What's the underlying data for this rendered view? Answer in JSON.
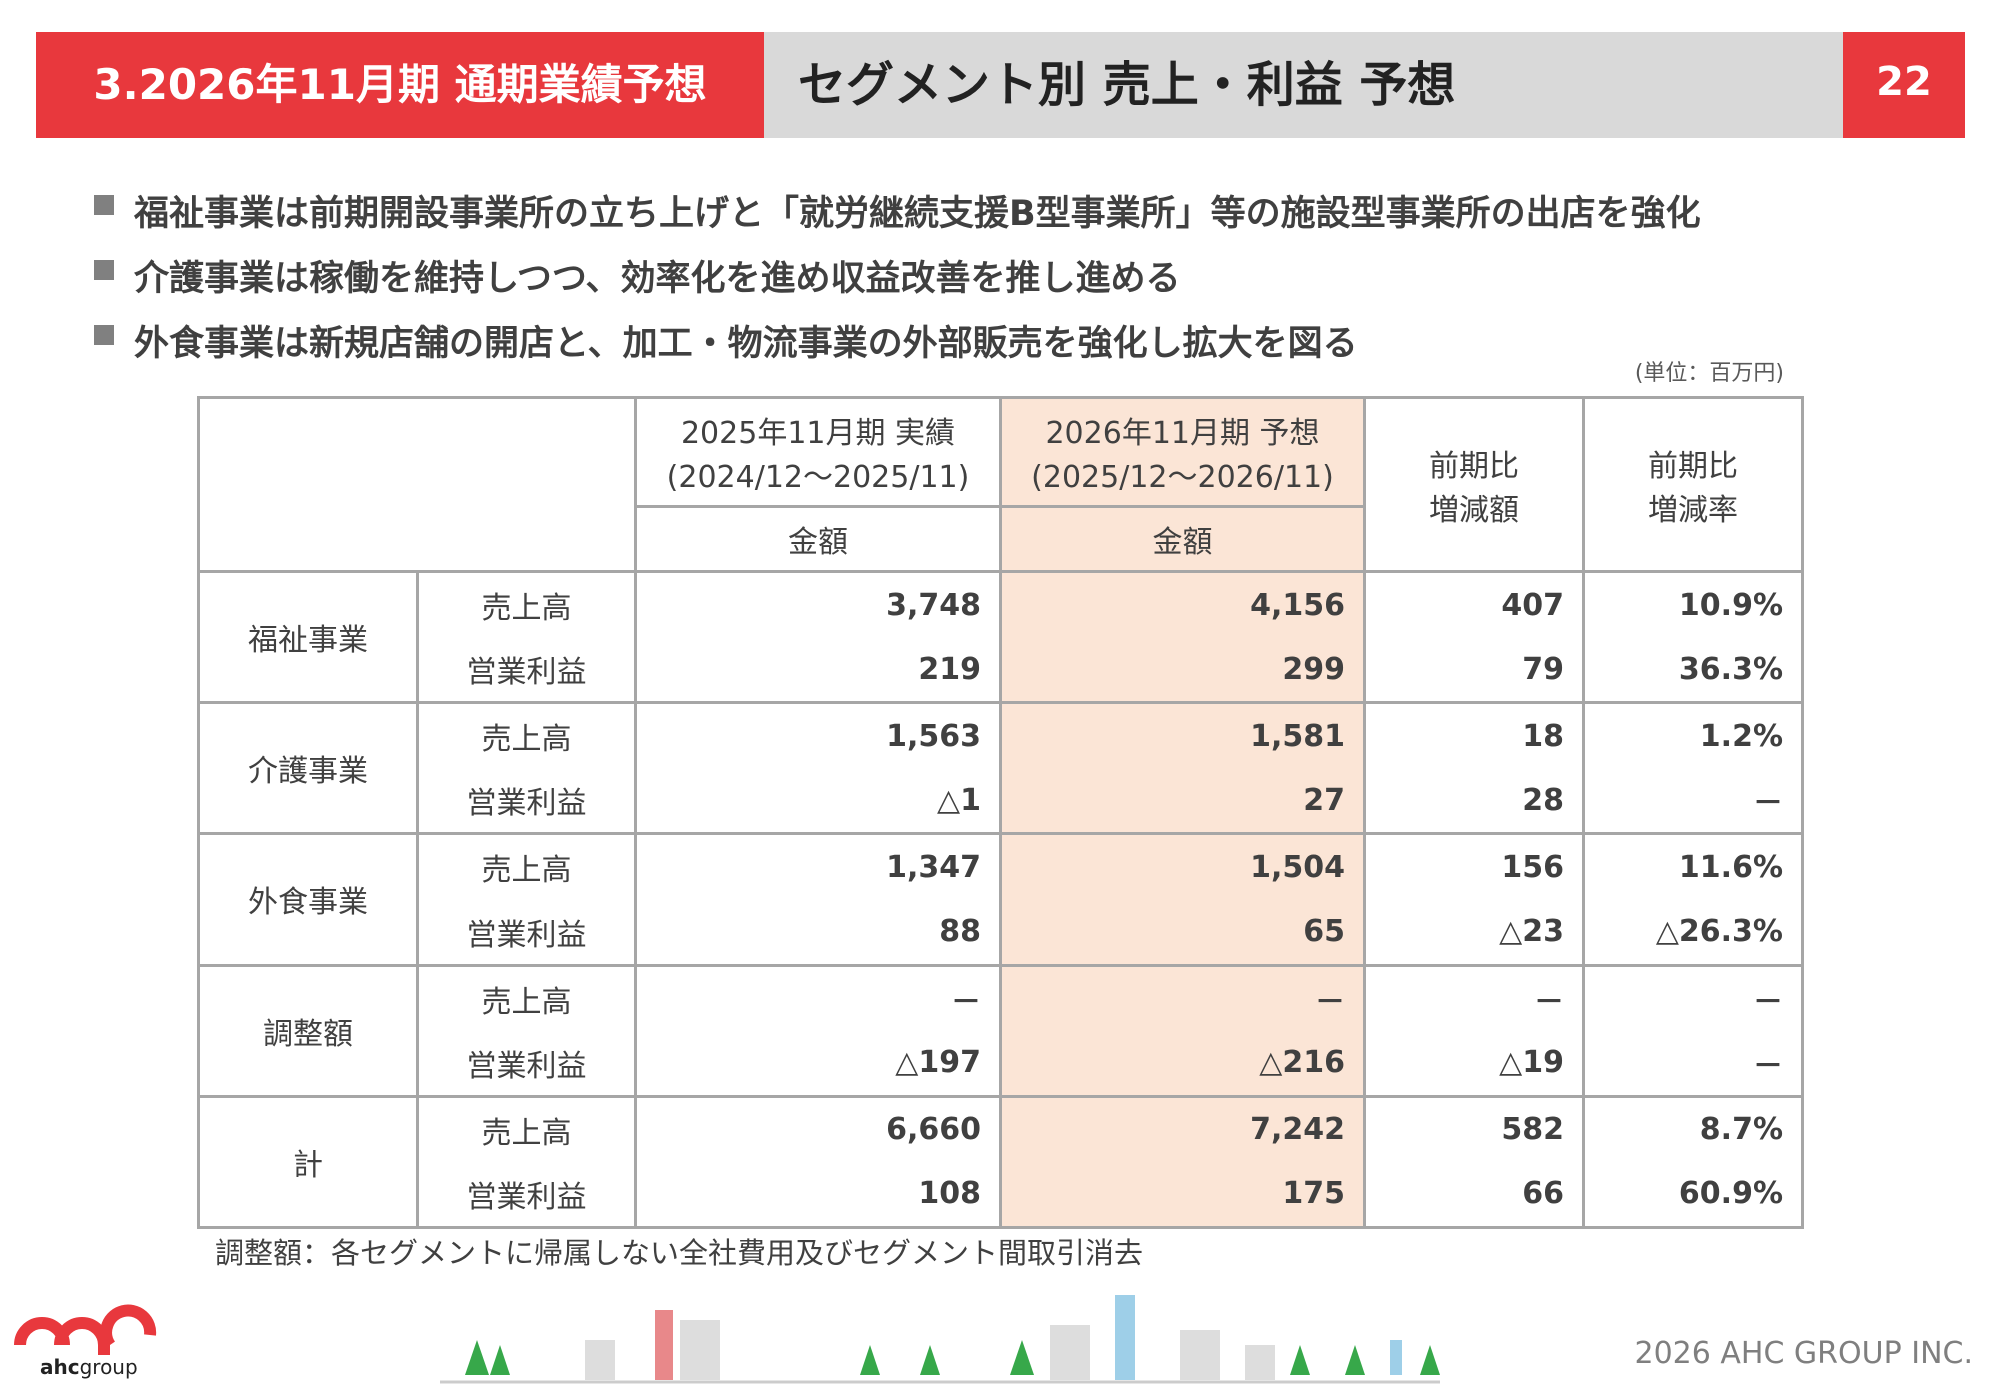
{
  "header": {
    "section": "3.2026年11月期 通期業績予想",
    "title": "セグメント別 売上・利益 予想",
    "page": "22"
  },
  "bullets": [
    "福祉事業は前期開設事業所の立ち上げと「就労継続支援B型事業所」等の施設型事業所の出店を強化",
    "介護事業は稼働を維持しつつ、効率化を進め収益改善を推し進める",
    "外食事業は新規店舗の開店と、加工・物流事業の外部販売を強化し拡大を図る"
  ],
  "unit": "(単位：百万円)",
  "table": {
    "header": {
      "actual": [
        "2025年11月期 実績",
        "(2024/12～2025/11)"
      ],
      "forecast": [
        "2026年11月期 予想",
        "(2025/12～2026/11)"
      ],
      "amount": [
        "金額",
        "金額"
      ],
      "diff": [
        "前期比",
        "増減額"
      ],
      "rate": [
        "前期比",
        "増減率"
      ]
    },
    "rows": [
      {
        "segment": "福祉事業",
        "items": [
          {
            "label": "売上高",
            "values": [
              "3,748",
              "4,156",
              "407",
              "10.9%"
            ]
          },
          {
            "label": "営業利益",
            "values": [
              "219",
              "299",
              "79",
              "36.3%"
            ]
          }
        ]
      },
      {
        "segment": "介護事業",
        "items": [
          {
            "label": "売上高",
            "values": [
              "1,563",
              "1,581",
              "18",
              "1.2%"
            ]
          },
          {
            "label": "営業利益",
            "values": [
              "△1",
              "27",
              "28",
              "－"
            ]
          }
        ]
      },
      {
        "segment": "外食事業",
        "items": [
          {
            "label": "売上高",
            "values": [
              "1,347",
              "1,504",
              "156",
              "11.6%"
            ]
          },
          {
            "label": "営業利益",
            "values": [
              "88",
              "65",
              "△23",
              "△26.3%"
            ]
          }
        ]
      },
      {
        "segment": "調整額",
        "items": [
          {
            "label": "売上高",
            "values": [
              "－",
              "－",
              "－",
              "－"
            ]
          },
          {
            "label": "営業利益",
            "values": [
              "△197",
              "△216",
              "△19",
              "－"
            ]
          }
        ]
      },
      {
        "segment": "計",
        "items": [
          {
            "label": "売上高",
            "values": [
              "6,660",
              "7,242",
              "582",
              "8.7%"
            ]
          },
          {
            "label": "営業利益",
            "values": [
              "108",
              "175",
              "66",
              "60.9%"
            ]
          }
        ]
      }
    ]
  },
  "note": "調整額：各セグメントに帰属しない全社費用及びセグメント間取引消去",
  "logo": {
    "brand": "ahc",
    "suffix": "group"
  },
  "copyright": "2026 AHC GROUP INC."
}
